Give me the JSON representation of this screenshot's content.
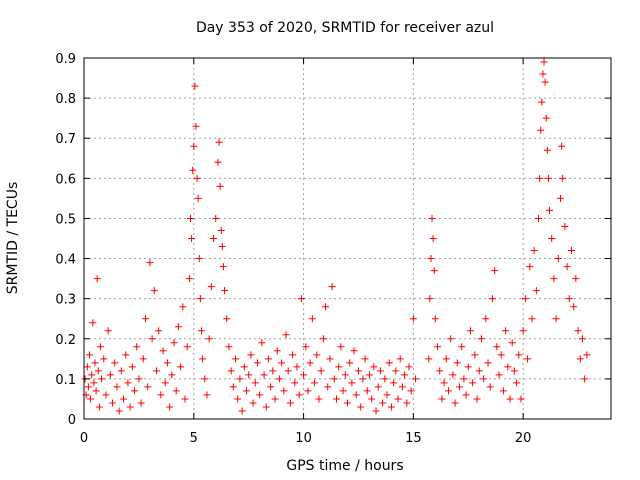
{
  "chart_data": {
    "type": "scatter",
    "title": "Day 353 of 2020, SRMTID for receiver azul",
    "xlabel": "GPS time / hours",
    "ylabel": "SRMTID / TECUs",
    "xlim": [
      0,
      24
    ],
    "ylim": [
      0,
      0.9
    ],
    "grid": true,
    "marker": "+",
    "color": "#ff0000",
    "x_ticks": [
      0,
      5,
      10,
      15,
      20
    ],
    "x_tick_labels": [
      "0",
      "5",
      "10",
      "15",
      "20"
    ],
    "y_ticks": [
      0,
      0.1,
      0.2,
      0.3,
      0.4,
      0.5,
      0.6,
      0.7,
      0.8,
      0.9
    ],
    "y_tick_labels": [
      "0",
      "0.1",
      "0.2",
      "0.3",
      "0.4",
      "0.5",
      "0.6",
      "0.7",
      "0.8",
      "0.9"
    ],
    "series": [
      {
        "name": "SRMTID",
        "points": [
          [
            0.05,
            0.1
          ],
          [
            0.1,
            0.06
          ],
          [
            0.15,
            0.13
          ],
          [
            0.2,
            0.08
          ],
          [
            0.25,
            0.16
          ],
          [
            0.3,
            0.05
          ],
          [
            0.35,
            0.11
          ],
          [
            0.4,
            0.24
          ],
          [
            0.45,
            0.09
          ],
          [
            0.5,
            0.14
          ],
          [
            0.55,
            0.07
          ],
          [
            0.6,
            0.35
          ],
          [
            0.65,
            0.12
          ],
          [
            0.7,
            0.03
          ],
          [
            0.75,
            0.18
          ],
          [
            0.8,
            0.1
          ],
          [
            0.9,
            0.15
          ],
          [
            1.0,
            0.06
          ],
          [
            1.1,
            0.22
          ],
          [
            1.2,
            0.11
          ],
          [
            1.3,
            0.04
          ],
          [
            1.4,
            0.14
          ],
          [
            1.5,
            0.08
          ],
          [
            1.6,
            0.02
          ],
          [
            1.7,
            0.12
          ],
          [
            1.8,
            0.05
          ],
          [
            1.9,
            0.16
          ],
          [
            2.0,
            0.09
          ],
          [
            2.1,
            0.03
          ],
          [
            2.2,
            0.13
          ],
          [
            2.3,
            0.07
          ],
          [
            2.4,
            0.18
          ],
          [
            2.5,
            0.1
          ],
          [
            2.6,
            0.04
          ],
          [
            2.7,
            0.15
          ],
          [
            2.8,
            0.25
          ],
          [
            2.9,
            0.08
          ],
          [
            3.0,
            0.39
          ],
          [
            3.1,
            0.2
          ],
          [
            3.2,
            0.32
          ],
          [
            3.3,
            0.12
          ],
          [
            3.4,
            0.22
          ],
          [
            3.5,
            0.06
          ],
          [
            3.6,
            0.17
          ],
          [
            3.7,
            0.09
          ],
          [
            3.8,
            0.14
          ],
          [
            3.9,
            0.03
          ],
          [
            4.0,
            0.11
          ],
          [
            4.1,
            0.19
          ],
          [
            4.2,
            0.07
          ],
          [
            4.3,
            0.23
          ],
          [
            4.4,
            0.13
          ],
          [
            4.5,
            0.28
          ],
          [
            4.6,
            0.05
          ],
          [
            4.7,
            0.18
          ],
          [
            4.8,
            0.35
          ],
          [
            4.85,
            0.5
          ],
          [
            4.9,
            0.45
          ],
          [
            4.95,
            0.62
          ],
          [
            5.0,
            0.68
          ],
          [
            5.05,
            0.83
          ],
          [
            5.1,
            0.73
          ],
          [
            5.15,
            0.6
          ],
          [
            5.2,
            0.55
          ],
          [
            5.25,
            0.4
          ],
          [
            5.3,
            0.3
          ],
          [
            5.35,
            0.22
          ],
          [
            5.4,
            0.15
          ],
          [
            5.5,
            0.1
          ],
          [
            5.6,
            0.06
          ],
          [
            5.7,
            0.2
          ],
          [
            5.8,
            0.33
          ],
          [
            5.9,
            0.45
          ],
          [
            6.0,
            0.5
          ],
          [
            6.1,
            0.64
          ],
          [
            6.15,
            0.69
          ],
          [
            6.2,
            0.58
          ],
          [
            6.25,
            0.47
          ],
          [
            6.3,
            0.43
          ],
          [
            6.35,
            0.38
          ],
          [
            6.4,
            0.32
          ],
          [
            6.5,
            0.25
          ],
          [
            6.6,
            0.18
          ],
          [
            6.7,
            0.12
          ],
          [
            6.8,
            0.08
          ],
          [
            6.9,
            0.15
          ],
          [
            7.0,
            0.05
          ],
          [
            7.1,
            0.1
          ],
          [
            7.2,
            0.02
          ],
          [
            7.3,
            0.13
          ],
          [
            7.4,
            0.07
          ],
          [
            7.5,
            0.11
          ],
          [
            7.6,
            0.16
          ],
          [
            7.7,
            0.04
          ],
          [
            7.8,
            0.09
          ],
          [
            7.9,
            0.14
          ],
          [
            8.0,
            0.06
          ],
          [
            8.1,
            0.19
          ],
          [
            8.2,
            0.11
          ],
          [
            8.3,
            0.03
          ],
          [
            8.4,
            0.15
          ],
          [
            8.5,
            0.08
          ],
          [
            8.6,
            0.12
          ],
          [
            8.7,
            0.05
          ],
          [
            8.8,
            0.17
          ],
          [
            8.9,
            0.1
          ],
          [
            9.0,
            0.14
          ],
          [
            9.1,
            0.07
          ],
          [
            9.2,
            0.21
          ],
          [
            9.3,
            0.12
          ],
          [
            9.4,
            0.04
          ],
          [
            9.5,
            0.16
          ],
          [
            9.6,
            0.09
          ],
          [
            9.7,
            0.13
          ],
          [
            9.8,
            0.06
          ],
          [
            9.9,
            0.3
          ],
          [
            10.0,
            0.11
          ],
          [
            10.1,
            0.18
          ],
          [
            10.2,
            0.07
          ],
          [
            10.3,
            0.14
          ],
          [
            10.4,
            0.25
          ],
          [
            10.5,
            0.09
          ],
          [
            10.6,
            0.16
          ],
          [
            10.7,
            0.05
          ],
          [
            10.8,
            0.12
          ],
          [
            10.9,
            0.2
          ],
          [
            11.0,
            0.28
          ],
          [
            11.1,
            0.08
          ],
          [
            11.2,
            0.15
          ],
          [
            11.3,
            0.33
          ],
          [
            11.4,
            0.1
          ],
          [
            11.5,
            0.05
          ],
          [
            11.6,
            0.13
          ],
          [
            11.7,
            0.18
          ],
          [
            11.8,
            0.07
          ],
          [
            11.9,
            0.11
          ],
          [
            12.0,
            0.04
          ],
          [
            12.1,
            0.14
          ],
          [
            12.2,
            0.09
          ],
          [
            12.3,
            0.17
          ],
          [
            12.4,
            0.06
          ],
          [
            12.5,
            0.12
          ],
          [
            12.6,
            0.03
          ],
          [
            12.7,
            0.1
          ],
          [
            12.8,
            0.15
          ],
          [
            12.9,
            0.07
          ],
          [
            13.0,
            0.11
          ],
          [
            13.1,
            0.05
          ],
          [
            13.2,
            0.13
          ],
          [
            13.3,
            0.02
          ],
          [
            13.4,
            0.08
          ],
          [
            13.5,
            0.12
          ],
          [
            13.6,
            0.04
          ],
          [
            13.7,
            0.1
          ],
          [
            13.8,
            0.06
          ],
          [
            13.9,
            0.14
          ],
          [
            14.0,
            0.03
          ],
          [
            14.1,
            0.09
          ],
          [
            14.2,
            0.12
          ],
          [
            14.3,
            0.05
          ],
          [
            14.4,
            0.15
          ],
          [
            14.5,
            0.08
          ],
          [
            14.6,
            0.11
          ],
          [
            14.7,
            0.04
          ],
          [
            14.8,
            0.13
          ],
          [
            14.9,
            0.07
          ],
          [
            15.0,
            0.25
          ],
          [
            15.1,
            0.1
          ],
          [
            15.7,
            0.15
          ],
          [
            15.75,
            0.3
          ],
          [
            15.8,
            0.4
          ],
          [
            15.85,
            0.5
          ],
          [
            15.9,
            0.45
          ],
          [
            15.95,
            0.37
          ],
          [
            16.0,
            0.25
          ],
          [
            16.1,
            0.18
          ],
          [
            16.2,
            0.12
          ],
          [
            16.3,
            0.05
          ],
          [
            16.4,
            0.09
          ],
          [
            16.5,
            0.15
          ],
          [
            16.6,
            0.07
          ],
          [
            16.7,
            0.2
          ],
          [
            16.8,
            0.11
          ],
          [
            16.9,
            0.04
          ],
          [
            17.0,
            0.14
          ],
          [
            17.1,
            0.08
          ],
          [
            17.2,
            0.18
          ],
          [
            17.3,
            0.1
          ],
          [
            17.4,
            0.06
          ],
          [
            17.5,
            0.13
          ],
          [
            17.6,
            0.22
          ],
          [
            17.7,
            0.09
          ],
          [
            17.8,
            0.16
          ],
          [
            17.9,
            0.05
          ],
          [
            18.0,
            0.12
          ],
          [
            18.1,
            0.2
          ],
          [
            18.2,
            0.1
          ],
          [
            18.3,
            0.25
          ],
          [
            18.4,
            0.14
          ],
          [
            18.5,
            0.08
          ],
          [
            18.6,
            0.3
          ],
          [
            18.7,
            0.37
          ],
          [
            18.8,
            0.18
          ],
          [
            18.9,
            0.11
          ],
          [
            19.0,
            0.16
          ],
          [
            19.1,
            0.07
          ],
          [
            19.2,
            0.22
          ],
          [
            19.3,
            0.13
          ],
          [
            19.4,
            0.05
          ],
          [
            19.5,
            0.19
          ],
          [
            19.6,
            0.12
          ],
          [
            19.7,
            0.09
          ],
          [
            19.8,
            0.16
          ],
          [
            19.9,
            0.05
          ],
          [
            20.0,
            0.22
          ],
          [
            20.1,
            0.3
          ],
          [
            20.2,
            0.15
          ],
          [
            20.3,
            0.38
          ],
          [
            20.4,
            0.25
          ],
          [
            20.5,
            0.42
          ],
          [
            20.6,
            0.32
          ],
          [
            20.7,
            0.5
          ],
          [
            20.75,
            0.6
          ],
          [
            20.8,
            0.72
          ],
          [
            20.85,
            0.79
          ],
          [
            20.9,
            0.86
          ],
          [
            20.95,
            0.89
          ],
          [
            21.0,
            0.84
          ],
          [
            21.05,
            0.75
          ],
          [
            21.1,
            0.67
          ],
          [
            21.15,
            0.6
          ],
          [
            21.2,
            0.52
          ],
          [
            21.3,
            0.45
          ],
          [
            21.4,
            0.35
          ],
          [
            21.5,
            0.25
          ],
          [
            21.6,
            0.4
          ],
          [
            21.7,
            0.55
          ],
          [
            21.75,
            0.68
          ],
          [
            21.8,
            0.6
          ],
          [
            21.9,
            0.48
          ],
          [
            22.0,
            0.38
          ],
          [
            22.1,
            0.3
          ],
          [
            22.2,
            0.42
          ],
          [
            22.3,
            0.28
          ],
          [
            22.4,
            0.35
          ],
          [
            22.5,
            0.22
          ],
          [
            22.6,
            0.15
          ],
          [
            22.7,
            0.2
          ],
          [
            22.8,
            0.1
          ],
          [
            22.9,
            0.16
          ]
        ]
      }
    ]
  }
}
